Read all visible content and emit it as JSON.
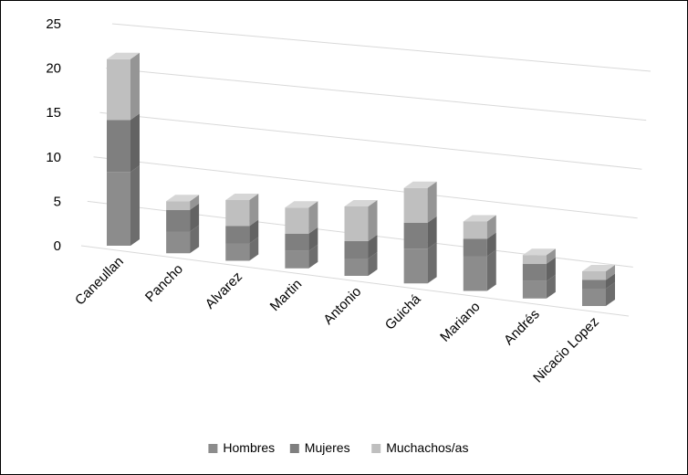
{
  "chart_data": {
    "type": "bar",
    "stacked": true,
    "title": "",
    "xlabel": "",
    "ylabel": "",
    "ylim": [
      0,
      25
    ],
    "yticks": [
      0,
      5,
      10,
      15,
      20,
      25
    ],
    "categories": [
      "Caneullan",
      "Pancho",
      "Alvarez",
      "Martin",
      "Antonio",
      "Guichá",
      "Mariano",
      "Andrés",
      "Nicacio Lopez"
    ],
    "series": [
      {
        "name": "Hombres",
        "values": [
          8.5,
          2.5,
          2,
          2,
          2,
          4,
          4,
          2,
          2
        ],
        "color": "#8c8c8c"
      },
      {
        "name": "Mujeres",
        "values": [
          6,
          2.5,
          2,
          2,
          2,
          3,
          2,
          2,
          1
        ],
        "color": "#7f7f7f"
      },
      {
        "name": "Muchachos/as",
        "values": [
          7,
          1,
          3,
          3,
          4,
          4,
          2,
          1,
          1
        ],
        "color": "#bfbfbf"
      }
    ],
    "grid": true,
    "legend_position": "bottom"
  }
}
